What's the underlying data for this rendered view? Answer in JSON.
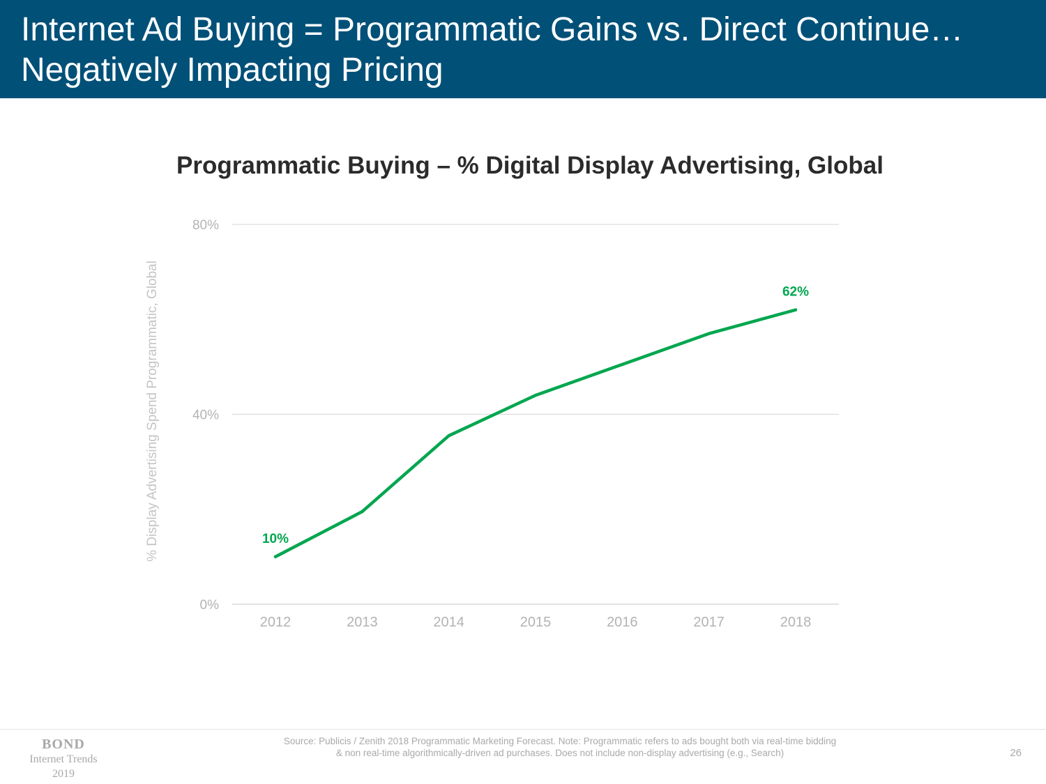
{
  "header": {
    "title_line1": "Internet Ad Buying = Programmatic Gains vs. Direct Continue…",
    "title_line2": "Negatively Impacting Pricing",
    "background_color": "#005078"
  },
  "chart_data": {
    "type": "line",
    "title": "Programmatic Buying – % Digital Display Advertising, Global",
    "xlabel": "",
    "ylabel": "% Display Advertising Spend Programmatic, Global",
    "categories": [
      "2012",
      "2013",
      "2014",
      "2015",
      "2016",
      "2017",
      "2018"
    ],
    "series": [
      {
        "values": [
          10,
          19.5,
          35.5,
          44,
          50.5,
          57,
          62
        ],
        "color": "#00a64f"
      }
    ],
    "data_labels": [
      {
        "index": 0,
        "text": "10%"
      },
      {
        "index": 6,
        "text": "62%"
      }
    ],
    "ylim": [
      0,
      80
    ],
    "yticks": [
      0,
      40,
      80
    ],
    "ytick_labels": [
      "0%",
      "40%",
      "80%"
    ],
    "grid": true,
    "legend": "none"
  },
  "footer": {
    "logo_main": "BOND",
    "logo_line2": "Internet Trends",
    "logo_line3": "2019",
    "source_line1": "Source: Publicis / Zenith 2018 Programmatic Marketing Forecast.  Note: Programmatic refers to ads bought both via real-time bidding",
    "source_line2": "& non real-time algorithmically-driven ad purchases.  Does not include non-display advertising (e.g., Search)",
    "page_number": "26"
  }
}
